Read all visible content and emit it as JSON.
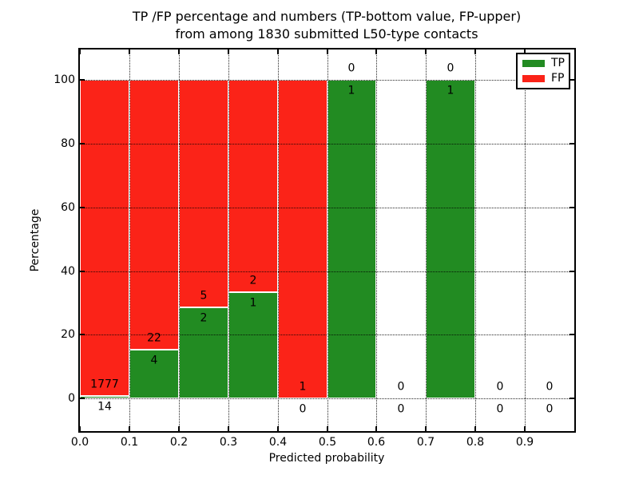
{
  "title": {
    "line1": "TP /FP percentage and numbers (TP-bottom value, FP-upper)",
    "line2": "from among 1830 submitted L50-type contacts"
  },
  "axes": {
    "xlabel": "Predicted probability",
    "ylabel": "Percentage",
    "xtick_labels": [
      "0.0",
      "0.1",
      "0.2",
      "0.3",
      "0.4",
      "0.5",
      "0.6",
      "0.7",
      "0.8",
      "0.9"
    ],
    "xtick_values": [
      0.0,
      0.1,
      0.2,
      0.3,
      0.4,
      0.5,
      0.6,
      0.7,
      0.8,
      0.9
    ],
    "ytick_labels": [
      "0",
      "20",
      "40",
      "60",
      "80",
      "100"
    ],
    "ytick_values": [
      0,
      20,
      40,
      60,
      80,
      100
    ]
  },
  "legend": {
    "position": "upper right",
    "entries": [
      {
        "key": "tp",
        "label": "TP",
        "color": "#228b22"
      },
      {
        "key": "fp",
        "label": "FP",
        "color": "#fb2318"
      }
    ]
  },
  "colors": {
    "tp": "#228b22",
    "fp": "#fb2318",
    "bar_edge": "#ffffff",
    "grid": "#000000",
    "spine": "#000000"
  },
  "chart_data": {
    "type": "bar",
    "stacked": true,
    "orientation": "vertical",
    "normalized_to_percent": true,
    "title": "TP /FP percentage and numbers (TP-bottom value, FP-upper) from among 1830 submitted L50-type contacts",
    "xlabel": "Predicted probability",
    "ylabel": "Percentage",
    "xlim": [
      0.0,
      1.0
    ],
    "ylim": [
      -10,
      110
    ],
    "grid": true,
    "grid_style": "dotted",
    "legend_position": "upper right",
    "total_contacts": 1830,
    "bin_edges": [
      0.0,
      0.1,
      0.2,
      0.3,
      0.4,
      0.5,
      0.6,
      0.7,
      0.8,
      0.9,
      1.0
    ],
    "series": [
      {
        "name": "TP",
        "color_key": "tp",
        "counts": [
          14,
          4,
          2,
          1,
          0,
          1,
          0,
          1,
          0,
          0
        ]
      },
      {
        "name": "FP",
        "color_key": "fp",
        "counts": [
          1777,
          22,
          5,
          2,
          1,
          0,
          0,
          0,
          0,
          0
        ]
      }
    ],
    "tp_percent_by_bin": [
      0.78,
      15.38,
      28.57,
      33.33,
      0,
      100,
      null,
      100,
      null,
      null
    ],
    "label_convention": "TP count below green/red boundary, FP count above boundary"
  }
}
